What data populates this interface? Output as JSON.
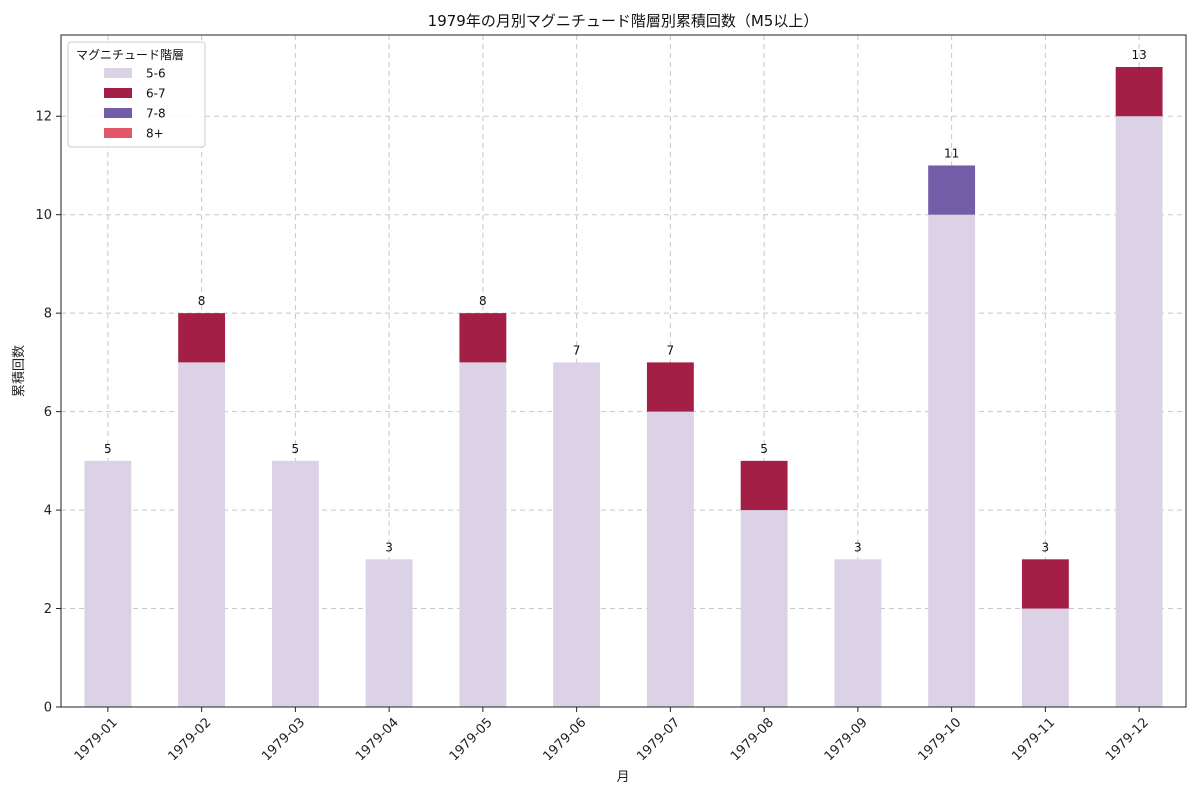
{
  "chart_data": {
    "type": "bar",
    "stacked": true,
    "title": "1979年の月別マグニチュード階層別累積回数（M5以上）",
    "xlabel": "月",
    "ylabel": "累積回数",
    "categories": [
      "1979-01",
      "1979-02",
      "1979-03",
      "1979-04",
      "1979-05",
      "1979-06",
      "1979-07",
      "1979-08",
      "1979-09",
      "1979-10",
      "1979-11",
      "1979-12"
    ],
    "series": [
      {
        "name": "5-6",
        "color": "#dcd2e6",
        "values": [
          5,
          7,
          5,
          3,
          7,
          7,
          6,
          4,
          3,
          10,
          2,
          12
        ]
      },
      {
        "name": "6-7",
        "color": "#a31f45",
        "values": [
          0,
          1,
          0,
          0,
          1,
          0,
          1,
          1,
          0,
          0,
          1,
          1
        ]
      },
      {
        "name": "7-8",
        "color": "#735ca8",
        "values": [
          0,
          0,
          0,
          0,
          0,
          0,
          0,
          0,
          0,
          1,
          0,
          0
        ]
      },
      {
        "name": "8+",
        "color": "#e3566a",
        "values": [
          0,
          0,
          0,
          0,
          0,
          0,
          0,
          0,
          0,
          0,
          0,
          0
        ]
      }
    ],
    "totals": [
      5,
      8,
      5,
      3,
      8,
      7,
      7,
      5,
      3,
      11,
      3,
      13
    ],
    "ylim": [
      0,
      13.65
    ],
    "yticks": [
      0,
      2,
      4,
      6,
      8,
      10,
      12
    ],
    "grid": true,
    "legend": {
      "title": "マグニチュード階層",
      "placement": "top-left"
    }
  }
}
